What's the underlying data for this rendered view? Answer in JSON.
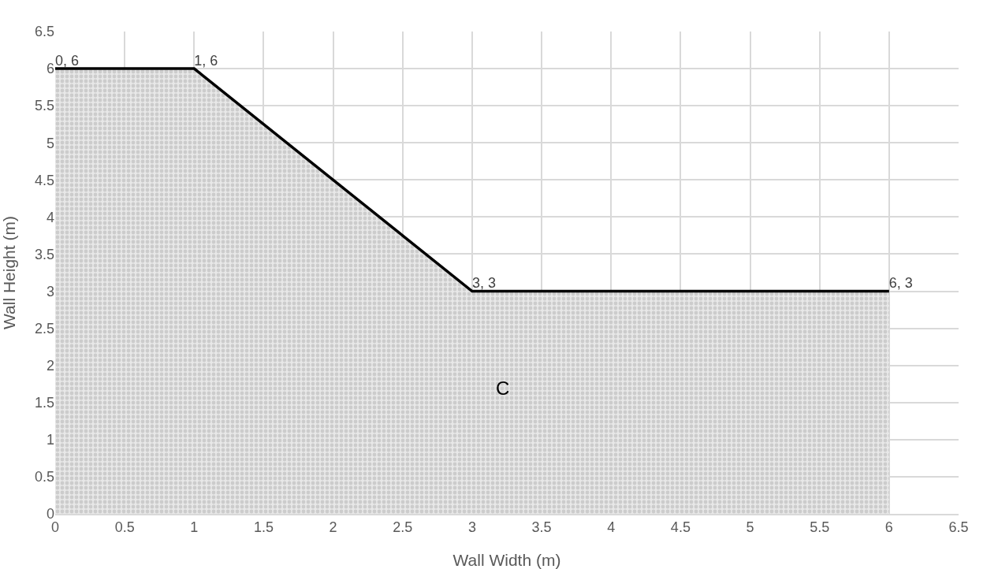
{
  "chart_data": {
    "type": "area",
    "xlabel": "Wall Width (m)",
    "ylabel": "Wall Height (m)",
    "x": [
      0,
      1,
      3,
      6
    ],
    "series": [
      {
        "color": "#000000",
        "values": [
          6,
          6,
          3,
          3
        ],
        "value_labels": [
          "0, 6",
          "1, 6",
          "3, 3",
          "6, 3"
        ]
      }
    ],
    "annotations": [
      "C"
    ],
    "xlim": [
      0,
      6.5
    ],
    "ylim": [
      0,
      6.5
    ],
    "xticks": [
      0,
      0.5,
      1,
      1.5,
      2,
      2.5,
      3,
      3.5,
      4,
      4.5,
      5,
      5.5,
      6,
      6.5
    ],
    "yticks": [
      0,
      0.5,
      1,
      1.5,
      2,
      2.5,
      3,
      3.5,
      4,
      4.5,
      5,
      5.5,
      6,
      6.5
    ],
    "grid": true,
    "marker": "none",
    "line_style": "solid"
  }
}
